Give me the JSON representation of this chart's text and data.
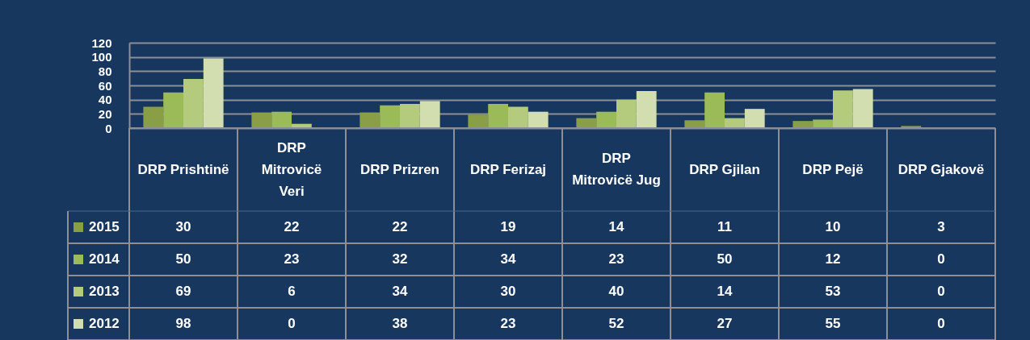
{
  "chart_data": {
    "type": "bar",
    "categories": [
      "DRP Prishtinë",
      "DRP Mitrovicë Veri",
      "DRP Prizren",
      "DRP Ferizaj",
      "DRP Mitrovicë Jug",
      "DRP Gjilan",
      "DRP Pejë",
      "DRP Gjakovë"
    ],
    "series": [
      {
        "name": "2015",
        "color": "#8a9f45",
        "values": [
          30,
          22,
          22,
          19,
          14,
          11,
          10,
          3
        ]
      },
      {
        "name": "2014",
        "color": "#9bbb59",
        "values": [
          50,
          23,
          32,
          34,
          23,
          50,
          12,
          0
        ]
      },
      {
        "name": "2013",
        "color": "#b4cb7d",
        "values": [
          69,
          6,
          34,
          30,
          40,
          14,
          53,
          0
        ]
      },
      {
        "name": "2012",
        "color": "#d2ddb0",
        "values": [
          98,
          0,
          38,
          23,
          52,
          27,
          55,
          0
        ]
      }
    ],
    "ylim": [
      0,
      120
    ],
    "yticks": [
      0,
      20,
      40,
      60,
      80,
      100,
      120
    ],
    "grid": "y",
    "data_labels": true,
    "legend": "bottom left"
  }
}
